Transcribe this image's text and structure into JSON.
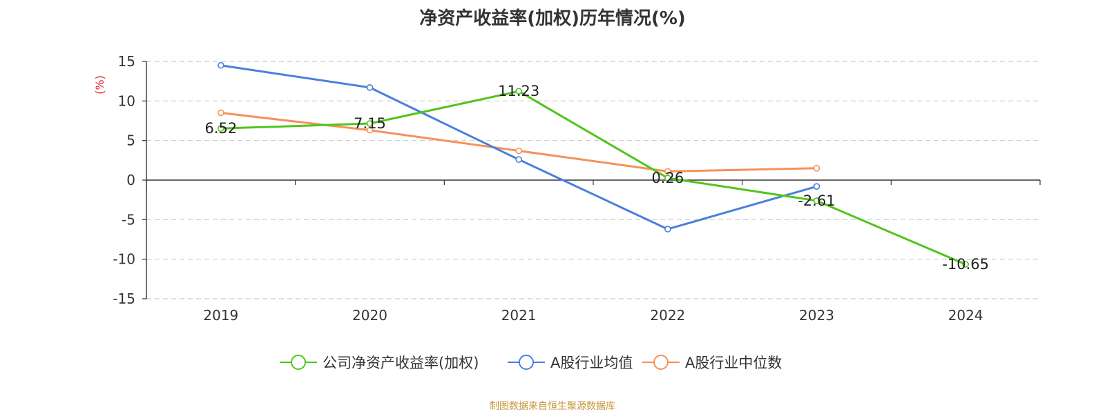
{
  "title": "净资产收益率(加权)历年情况(%)",
  "source": "制图数据来自恒生聚源数据库",
  "chart_data": {
    "type": "line",
    "title": "净资产收益率(加权)历年情况(%)",
    "ylabel": "(%)",
    "xlabel": "",
    "categories": [
      "2019",
      "2020",
      "2021",
      "2022",
      "2023",
      "2024"
    ],
    "ylim": [
      -15,
      15
    ],
    "yticks": [
      15,
      10,
      5,
      0,
      -5,
      -10,
      -15
    ],
    "grid": true,
    "legend_position": "bottom",
    "series": [
      {
        "name": "公司净资产收益率(加权)",
        "color": "#52c41a",
        "values": [
          6.52,
          7.15,
          11.23,
          0.26,
          -2.61,
          -10.65
        ],
        "labels": [
          "6.52",
          "7.15",
          "11.23",
          "0.26",
          "-2.61",
          "-10.65"
        ]
      },
      {
        "name": "A股行业均值",
        "color": "#4a7fdb",
        "values": [
          14.5,
          11.7,
          2.6,
          -6.2,
          -0.8,
          null
        ]
      },
      {
        "name": "A股行业中位数",
        "color": "#f7905a",
        "values": [
          8.5,
          6.3,
          3.7,
          1.1,
          1.5,
          null
        ]
      }
    ]
  }
}
